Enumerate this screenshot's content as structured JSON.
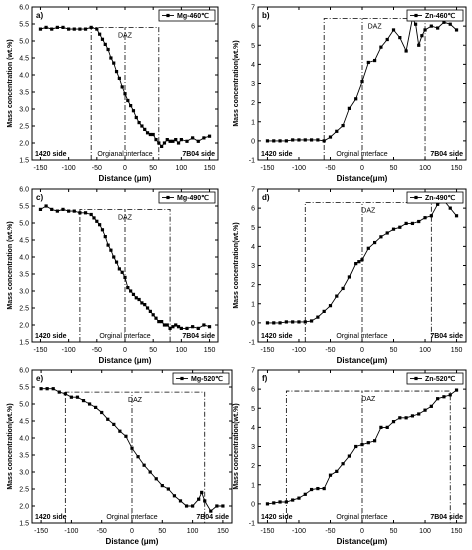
{
  "chart_data": [
    {
      "panel": "a)",
      "type": "line",
      "series": [
        {
          "name": "Mg-460℃",
          "x": [
            -150,
            -140,
            -130,
            -120,
            -110,
            -100,
            -90,
            -80,
            -70,
            -60,
            -50,
            -45,
            -40,
            -35,
            -30,
            -25,
            -20,
            -15,
            -10,
            -5,
            0,
            5,
            10,
            15,
            20,
            25,
            30,
            35,
            40,
            45,
            50,
            55,
            60,
            65,
            70,
            75,
            80,
            85,
            90,
            95,
            100,
            110,
            120,
            130,
            140,
            150
          ],
          "values": [
            5.35,
            5.4,
            5.35,
            5.4,
            5.4,
            5.35,
            5.35,
            5.35,
            5.35,
            5.4,
            5.35,
            5.2,
            5.05,
            4.9,
            4.75,
            4.5,
            4.35,
            4.1,
            3.9,
            3.65,
            3.45,
            3.25,
            3.1,
            2.95,
            2.75,
            2.6,
            2.5,
            2.4,
            2.3,
            2.25,
            2.25,
            2.1,
            2.0,
            1.9,
            2.0,
            2.1,
            2.05,
            2.05,
            2.1,
            2.0,
            2.1,
            2.05,
            2.15,
            2.05,
            2.15,
            2.2
          ]
        }
      ],
      "ylabel": "Mass concentration (wt.%)",
      "xlabel": "Distance (μm)",
      "xlim": [
        -165,
        165
      ],
      "ylim": [
        1.5,
        6.0
      ],
      "xticks": [
        "-150",
        "-100",
        "-50",
        "0",
        "50",
        "100",
        "150"
      ],
      "yticks": [
        "1.5",
        "2.0",
        "2.5",
        "3.0",
        "3.5",
        "4.0",
        "4.5",
        "5.0",
        "5.5",
        "6.0"
      ],
      "daz_label": "DAZ",
      "daz": [
        -60,
        60,
        5.4
      ],
      "left_text": "1420 side",
      "center_text": "Orgianal interface",
      "right_text": "7B04 side"
    },
    {
      "panel": "b)",
      "type": "line",
      "series": [
        {
          "name": "Zn-460℃",
          "x": [
            -150,
            -140,
            -130,
            -120,
            -110,
            -100,
            -90,
            -80,
            -70,
            -60,
            -50,
            -40,
            -30,
            -20,
            -10,
            0,
            10,
            20,
            30,
            40,
            50,
            60,
            70,
            80,
            85,
            90,
            95,
            100,
            110,
            120,
            130,
            140,
            150
          ],
          "values": [
            0.0,
            0.0,
            0.0,
            0.0,
            0.05,
            0.05,
            0.05,
            0.05,
            0.05,
            0.0,
            0.2,
            0.5,
            0.8,
            1.7,
            2.2,
            3.1,
            4.1,
            4.2,
            4.9,
            5.3,
            5.8,
            5.4,
            4.7,
            6.4,
            6.1,
            5.0,
            5.5,
            5.8,
            6.0,
            5.9,
            6.2,
            6.1,
            5.8
          ]
        }
      ],
      "ylabel": "Mass concentration(wt.%)",
      "xlabel": "Distance(μm)",
      "xlim": [
        -165,
        165
      ],
      "ylim": [
        -1,
        7
      ],
      "xticks": [
        "-150",
        "-100",
        "-50",
        "0",
        "50",
        "100",
        "150"
      ],
      "yticks": [
        "-1",
        "0",
        "1",
        "2",
        "3",
        "4",
        "5",
        "6",
        "7"
      ],
      "daz_label": "DAZ",
      "daz": [
        -60,
        100,
        6.4
      ],
      "left_text": "1420 side",
      "center_text": "Orginal interface",
      "right_text": "7B04 side"
    },
    {
      "panel": "c)",
      "type": "line",
      "series": [
        {
          "name": "Mg-490℃",
          "x": [
            -150,
            -140,
            -130,
            -120,
            -110,
            -100,
            -90,
            -80,
            -70,
            -60,
            -55,
            -50,
            -45,
            -40,
            -35,
            -30,
            -25,
            -20,
            -15,
            -10,
            -5,
            0,
            5,
            10,
            15,
            20,
            25,
            30,
            35,
            40,
            45,
            50,
            55,
            60,
            65,
            70,
            75,
            80,
            85,
            90,
            95,
            100,
            110,
            120,
            130,
            140,
            150
          ],
          "values": [
            5.4,
            5.5,
            5.4,
            5.35,
            5.4,
            5.35,
            5.35,
            5.3,
            5.3,
            5.25,
            5.15,
            5.05,
            4.95,
            4.8,
            4.6,
            4.35,
            4.2,
            4.0,
            3.85,
            3.65,
            3.55,
            3.4,
            3.1,
            3.0,
            2.9,
            2.8,
            2.75,
            2.65,
            2.6,
            2.5,
            2.4,
            2.3,
            2.2,
            2.1,
            2.1,
            2.0,
            2.0,
            1.9,
            1.95,
            2.0,
            1.95,
            1.9,
            1.9,
            1.95,
            1.9,
            2.0,
            1.95
          ]
        }
      ],
      "ylabel": "Mass concentration (wt.%)",
      "xlabel": "Distance (μm)",
      "xlim": [
        -165,
        165
      ],
      "ylim": [
        1.5,
        6.0
      ],
      "xticks": [
        "-150",
        "-100",
        "-50",
        "0",
        "50",
        "100",
        "150"
      ],
      "yticks": [
        "1.5",
        "2.0",
        "2.5",
        "3.0",
        "3.5",
        "4.0",
        "4.5",
        "5.0",
        "5.5",
        "6.0"
      ],
      "daz_label": "DAZ",
      "daz": [
        -80,
        80,
        5.4
      ],
      "left_text": "1420 side",
      "center_text": "Orginal interface",
      "right_text": "7B04 side"
    },
    {
      "panel": "d)",
      "type": "line",
      "series": [
        {
          "name": "Zn-490℃",
          "x": [
            -150,
            -140,
            -130,
            -120,
            -110,
            -100,
            -90,
            -80,
            -70,
            -60,
            -50,
            -40,
            -30,
            -20,
            -10,
            -5,
            0,
            10,
            20,
            30,
            40,
            50,
            60,
            70,
            80,
            90,
            100,
            110,
            120,
            130,
            140,
            150
          ],
          "values": [
            0.0,
            0.0,
            0.0,
            0.05,
            0.05,
            0.05,
            0.05,
            0.1,
            0.3,
            0.6,
            0.9,
            1.4,
            1.8,
            2.4,
            3.1,
            3.2,
            3.3,
            3.9,
            4.2,
            4.5,
            4.7,
            4.9,
            5.0,
            5.2,
            5.2,
            5.3,
            5.5,
            5.6,
            6.2,
            6.4,
            6.0,
            5.6
          ]
        }
      ],
      "ylabel": "Mass concentration(wt.%)",
      "xlabel": "Distance(μm)",
      "xlim": [
        -165,
        165
      ],
      "ylim": [
        -1,
        7
      ],
      "xticks": [
        "-150",
        "-100",
        "-50",
        "0",
        "50",
        "100",
        "150"
      ],
      "yticks": [
        "-1",
        "0",
        "1",
        "2",
        "3",
        "4",
        "5",
        "6",
        "7"
      ],
      "daz_label": "DAZ",
      "daz": [
        -90,
        110,
        6.3
      ],
      "left_text": "1420 side",
      "center_text": "Orginal interface",
      "right_text": "7B04 side"
    },
    {
      "panel": "e)",
      "type": "line",
      "series": [
        {
          "name": "Mg-520℃",
          "x": [
            -150,
            -140,
            -130,
            -120,
            -110,
            -100,
            -90,
            -80,
            -70,
            -60,
            -50,
            -40,
            -30,
            -20,
            -10,
            0,
            10,
            20,
            30,
            40,
            50,
            60,
            70,
            80,
            90,
            100,
            110,
            115,
            120,
            130,
            140,
            150
          ],
          "values": [
            5.45,
            5.45,
            5.45,
            5.35,
            5.3,
            5.2,
            5.2,
            5.1,
            5.0,
            4.9,
            4.75,
            4.55,
            4.4,
            4.2,
            4.05,
            3.7,
            3.45,
            3.2,
            3.0,
            2.8,
            2.6,
            2.5,
            2.3,
            2.15,
            2.0,
            2.0,
            2.2,
            2.4,
            2.15,
            1.85,
            2.0,
            2.0
          ]
        }
      ],
      "ylabel": "Mass concentration(wt.%)",
      "xlabel": "Distance (μm)",
      "xlim": [
        -165,
        165
      ],
      "ylim": [
        1.5,
        6.0
      ],
      "xticks": [
        "-150",
        "-100",
        "-50",
        "0",
        "50",
        "100",
        "150"
      ],
      "yticks": [
        "1.5",
        "2.0",
        "2.5",
        "3.0",
        "3.5",
        "4.0",
        "4.5",
        "5.0",
        "5.5",
        "6.0"
      ],
      "daz_label": "DAZ",
      "daz": [
        -110,
        120,
        5.35
      ],
      "left_text": "1420 side",
      "center_text": "Orginal interface",
      "right_text": "7B04 side"
    },
    {
      "panel": "f)",
      "type": "line",
      "series": [
        {
          "name": "Zn-520℃",
          "x": [
            -150,
            -140,
            -130,
            -120,
            -110,
            -100,
            -90,
            -80,
            -70,
            -60,
            -50,
            -40,
            -30,
            -20,
            -10,
            0,
            10,
            20,
            30,
            40,
            50,
            60,
            70,
            80,
            90,
            100,
            110,
            120,
            130,
            140,
            150
          ],
          "values": [
            0.0,
            0.05,
            0.1,
            0.1,
            0.2,
            0.3,
            0.5,
            0.75,
            0.8,
            0.8,
            1.5,
            1.7,
            2.1,
            2.5,
            3.0,
            3.1,
            3.2,
            3.3,
            4.0,
            4.0,
            4.3,
            4.5,
            4.5,
            4.6,
            4.7,
            4.9,
            5.1,
            5.5,
            5.6,
            5.7,
            5.95
          ]
        }
      ],
      "ylabel": "Mass concentration(wt.%)",
      "xlabel": "Distance(μm)",
      "xlim": [
        -165,
        165
      ],
      "ylim": [
        -1,
        7
      ],
      "xticks": [
        "-150",
        "-100",
        "-50",
        "0",
        "50",
        "100",
        "150"
      ],
      "yticks": [
        "-1",
        "0",
        "1",
        "2",
        "3",
        "4",
        "5",
        "6",
        "7"
      ],
      "daz_label": "DAZ",
      "daz": [
        -120,
        140,
        5.9
      ],
      "left_text": "1420 side",
      "center_text": "Orginal interface",
      "right_text": "7B04 side"
    }
  ]
}
